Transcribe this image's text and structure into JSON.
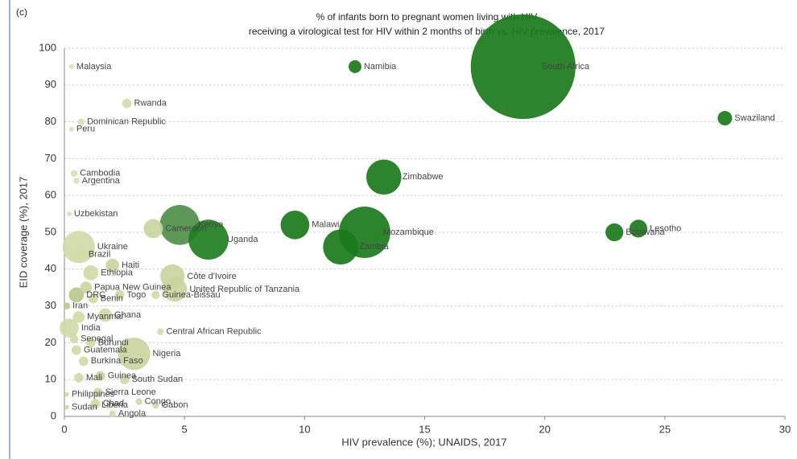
{
  "chart_data": {
    "type": "bubble",
    "panel_label": "(c)",
    "title": "% of infants born to pregnant women living with HIV",
    "subtitle": "receiving a virological test for HIV within 2 months of birth vs. HIV prevalence, 2017",
    "x_label": "HIV prevalence (%); UNAIDS, 2017",
    "y_label": "EID coverage (%), 2017",
    "xlim": [
      0,
      30
    ],
    "xticks": [
      0,
      5,
      10,
      15,
      20,
      25,
      30
    ],
    "ylim": [
      0,
      100
    ],
    "yticks": [
      0,
      10,
      20,
      30,
      40,
      50,
      60,
      70,
      80,
      90,
      100
    ],
    "grid": true,
    "labels": [
      "Malaysia",
      "Namibia",
      "South Africa",
      "Swaziland",
      "Rwanda",
      "Dominican Republic",
      "Peru",
      "Cambodia",
      "Argentina",
      "Zimbabwe",
      "Uzbekistan",
      "Malawi",
      "Kenya",
      "Cameroon",
      "Uganda",
      "Mozambique",
      "Zambia",
      "Lesotho",
      "Botswana",
      "Ukraine",
      "Brazil",
      "Haiti",
      "Ethiopia",
      "Côte d'Ivoire",
      "Papua New Guinea",
      "Togo",
      "Guinea-Bissau",
      "United Republic of Tanzania",
      "DRC",
      "Benin",
      "Iran",
      "Ghana",
      "Myanmar",
      "Central African Republic",
      "India",
      "Senegal",
      "Burundi",
      "Guatemala",
      "Nigeria",
      "Burkina Faso",
      "Mali",
      "Guinea",
      "South Sudan",
      "Sierra Leone",
      "Chad",
      "Congo",
      "Gabon",
      "Liberia",
      "Angola",
      "Sudan",
      "Philippines"
    ],
    "x": [
      0.3,
      12.1,
      19.1,
      27.5,
      2.6,
      0.7,
      0.3,
      0.4,
      0.5,
      13.3,
      0.2,
      9.6,
      4.8,
      3.7,
      6.0,
      12.5,
      11.5,
      23.9,
      22.9,
      0.6,
      0.7,
      2.0,
      1.1,
      4.5,
      0.9,
      2.3,
      3.8,
      4.6,
      0.5,
      1.2,
      0.1,
      1.7,
      0.6,
      4.0,
      0.2,
      0.4,
      1.1,
      0.5,
      2.9,
      0.8,
      0.6,
      1.5,
      2.5,
      1.4,
      1.3,
      3.1,
      3.8,
      1.3,
      2.0,
      0.1,
      0.1
    ],
    "y": [
      95,
      95,
      95,
      81,
      85,
      80,
      78,
      66,
      64,
      65,
      55,
      52,
      52,
      51,
      48,
      50,
      46,
      51,
      50,
      46,
      44,
      41,
      39,
      38,
      35,
      33,
      33,
      34.5,
      33,
      32,
      30,
      27.5,
      27,
      23,
      24,
      21,
      20,
      18,
      17,
      15,
      10.5,
      11,
      10,
      6.5,
      3.5,
      4,
      3,
      3,
      0.7,
      2.5,
      6
    ],
    "sizes": [
      0.5,
      3.6,
      240,
      4.6,
      2,
      1,
      0.5,
      1,
      0.8,
      27,
      0.5,
      18,
      35,
      8,
      35,
      58,
      27,
      7,
      7,
      23,
      2,
      4,
      5,
      13,
      3,
      2,
      1.5,
      13,
      5,
      2,
      1,
      4,
      3,
      1,
      8,
      1.5,
      2,
      2,
      23,
      2,
      2,
      2,
      2,
      2,
      2,
      1,
      1,
      1,
      1,
      0.5,
      0.5
    ],
    "colors": [
      "#d7e0b8",
      "#1a7a1a",
      "#1a7a1a",
      "#1a7a1a",
      "#d2dcae",
      "#d7e0b8",
      "#d7e0b8",
      "#d7e0b8",
      "#d7e0b8",
      "#1a7a1a",
      "#d7e0b8",
      "#1a7a1a",
      "#4f8f4a",
      "#c8d59e",
      "#1f7f1f",
      "#1a7a1a",
      "#1a7a1a",
      "#1a7a1a",
      "#1a7a1a",
      "#cfdaa6",
      "#cfdaa6",
      "#c8d59e",
      "#cfdaa6",
      "#c8d59e",
      "#c8d59e",
      "#cfdaa6",
      "#cfdaa6",
      "#c8d59e",
      "#b9c98a",
      "#cfdaa6",
      "#b9c98a",
      "#cfdaa6",
      "#cfdaa6",
      "#d2dcae",
      "#cfdaa6",
      "#cfdaa6",
      "#cfdaa6",
      "#cfdaa6",
      "#c8d59e",
      "#cfdaa6",
      "#cfdaa6",
      "#c8d59e",
      "#cfdaa6",
      "#cfdaa6",
      "#cfdaa6",
      "#cfdaa6",
      "#cfdaa6",
      "#cfdaa6",
      "#cfdaa6",
      "#cfdaa6",
      "#cfdaa6"
    ]
  }
}
